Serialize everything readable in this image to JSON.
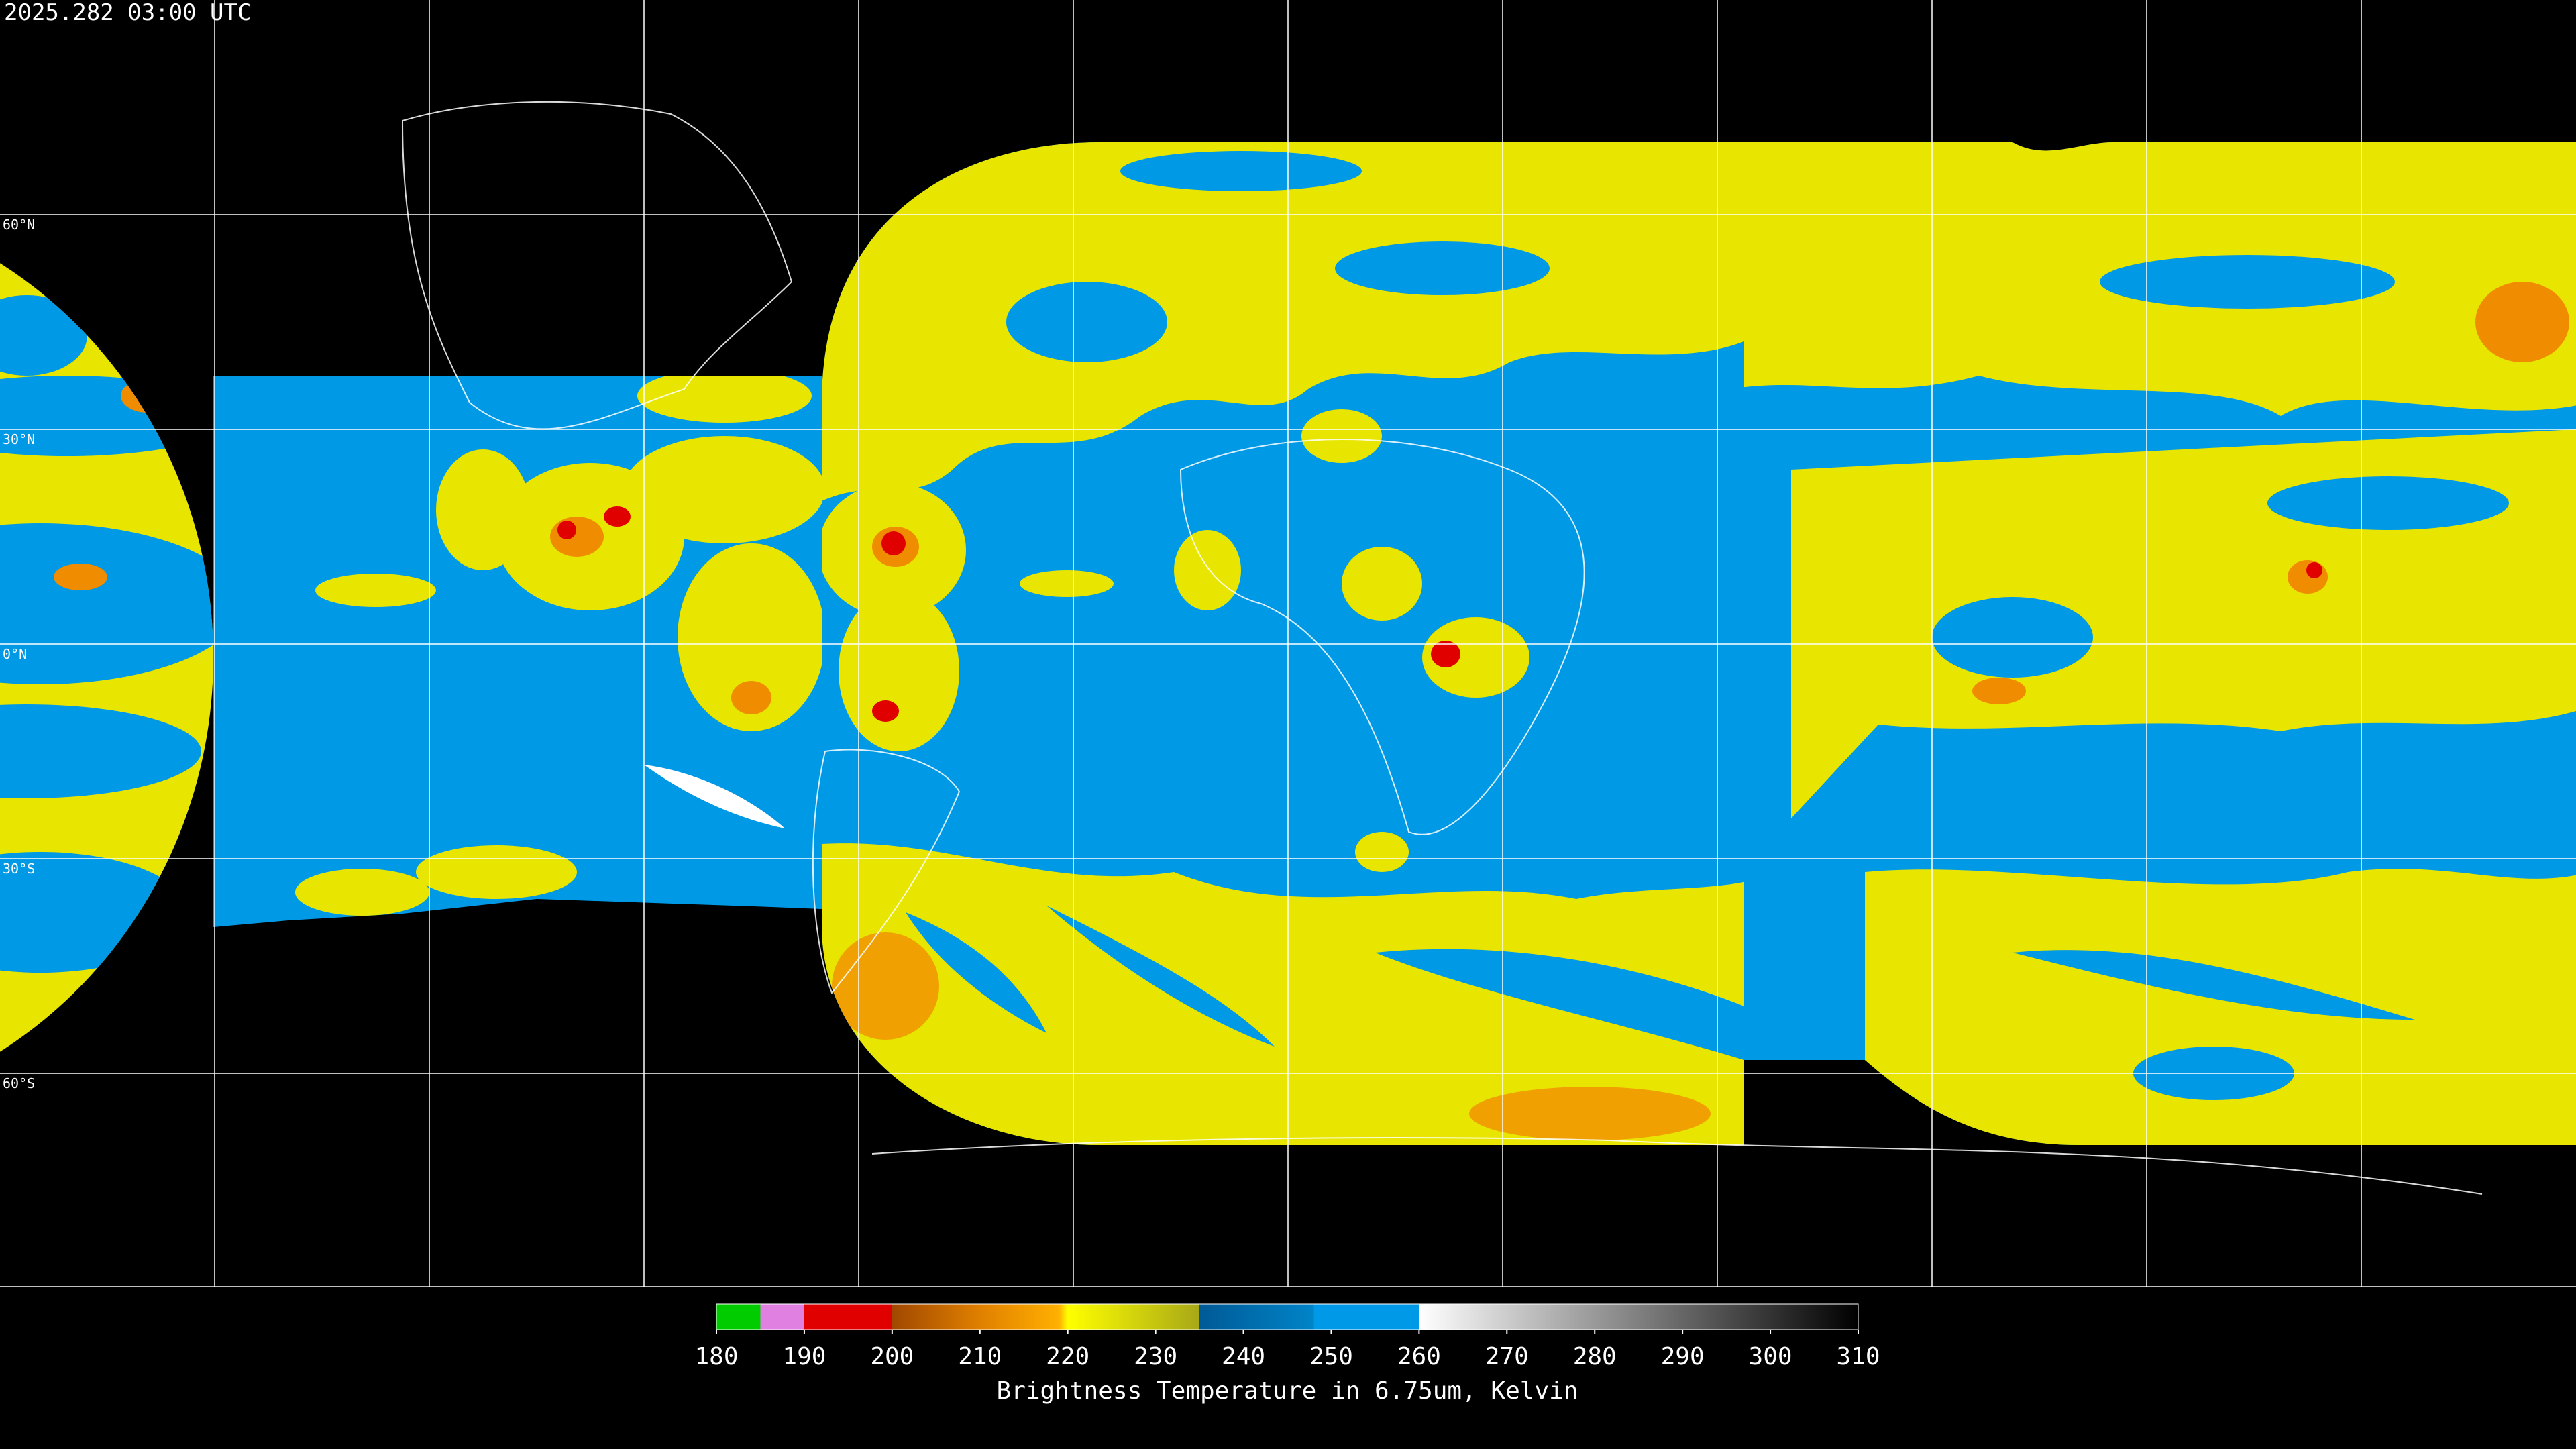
{
  "header": {
    "timestamp": "2025.282 03:00 UTC"
  },
  "map": {
    "latitude_labels": [
      "60°N",
      "30°N",
      "0°N",
      "30°S",
      "60°S"
    ]
  },
  "colorbar": {
    "range": [
      180,
      310
    ],
    "ticks": [
      180,
      190,
      200,
      210,
      220,
      230,
      240,
      250,
      260,
      270,
      280,
      290,
      300,
      310
    ],
    "stops": [
      {
        "value": 180,
        "color": "#00cc00"
      },
      {
        "value": 185,
        "color": "#00cc00"
      },
      {
        "value": 185,
        "color": "#e080e0"
      },
      {
        "value": 190,
        "color": "#e080e0"
      },
      {
        "value": 190,
        "color": "#e00000"
      },
      {
        "value": 200,
        "color": "#e00000"
      },
      {
        "value": 200,
        "color": "#a04800"
      },
      {
        "value": 210,
        "color": "#e08000"
      },
      {
        "value": 219,
        "color": "#ffb000"
      },
      {
        "value": 220,
        "color": "#ffff00"
      },
      {
        "value": 235,
        "color": "#a8a818"
      },
      {
        "value": 235,
        "color": "#005a96"
      },
      {
        "value": 248,
        "color": "#0084c8"
      },
      {
        "value": 248,
        "color": "#0099e8"
      },
      {
        "value": 260,
        "color": "#0099e8"
      },
      {
        "value": 260,
        "color": "#ffffff"
      },
      {
        "value": 310,
        "color": "#000000"
      }
    ],
    "label": "Brightness Temperature in 6.75um, Kelvin"
  }
}
